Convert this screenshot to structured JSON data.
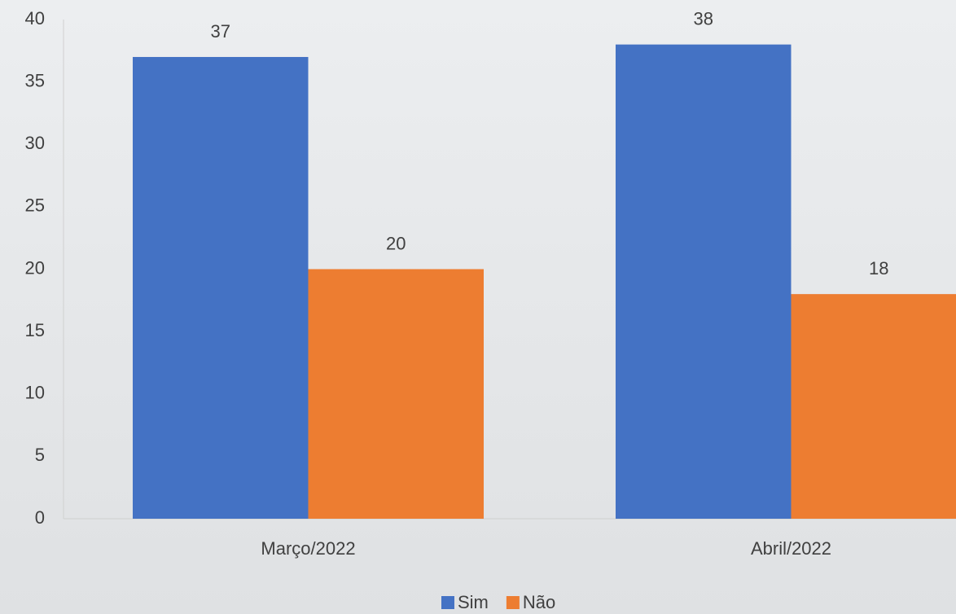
{
  "chart_data": {
    "type": "bar",
    "categories": [
      "Março/2022",
      "Abril/2022"
    ],
    "series": [
      {
        "name": "Sim",
        "color": "#4472c4",
        "values": [
          37,
          38
        ]
      },
      {
        "name": "Não",
        "color": "#ed7d31",
        "values": [
          20,
          18
        ]
      }
    ],
    "ylim": [
      0,
      40
    ],
    "yticks": [
      0,
      5,
      10,
      15,
      20,
      25,
      30,
      35,
      40
    ],
    "grid": false,
    "legend": "bottom",
    "data_labels": true
  }
}
